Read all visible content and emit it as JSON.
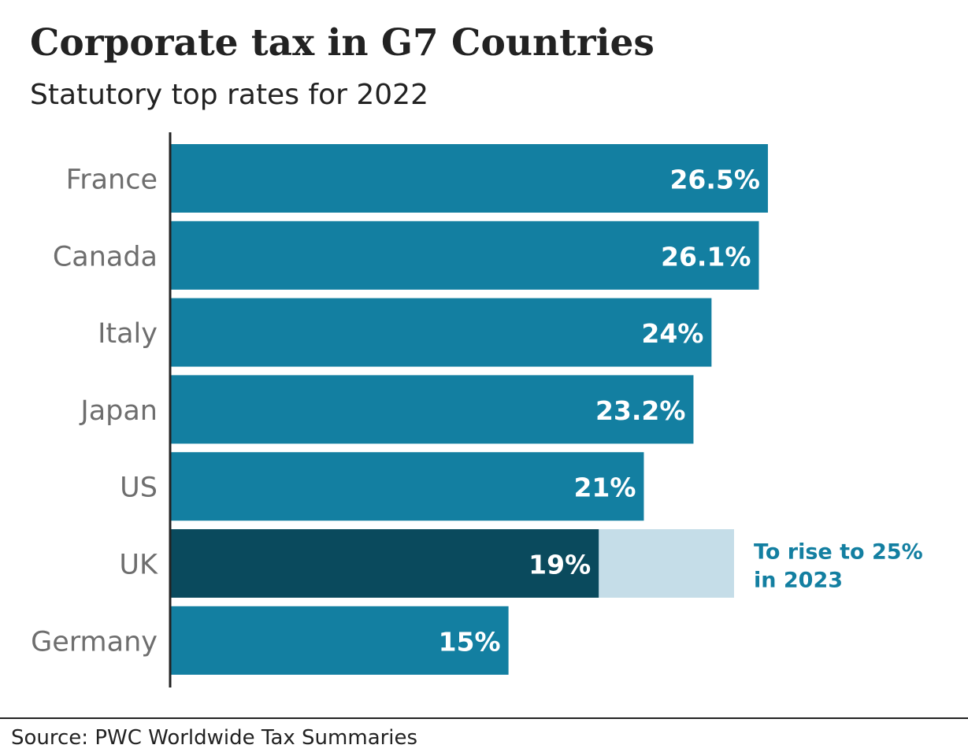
{
  "title": "Corporate tax in G7 Countries",
  "subtitle": "Statutory top rates for 2022",
  "source": "Source: PWC Worldwide Tax Summaries",
  "colors": {
    "bar": "#137fa1",
    "highlight": "#0a4a5d",
    "future": "#c5dde8",
    "annotation": "#137fa1",
    "axis": "#222222",
    "category_label": "#6e6e6e",
    "value_label": "#ffffff"
  },
  "chart_data": {
    "type": "bar",
    "orientation": "horizontal",
    "categories": [
      "France",
      "Canada",
      "Italy",
      "Japan",
      "US",
      "UK",
      "Germany"
    ],
    "values": [
      26.5,
      26.1,
      24,
      23.2,
      21,
      19,
      15
    ],
    "value_labels": [
      "26.5%",
      "26.1%",
      "24%",
      "23.2%",
      "21%",
      "19%",
      "15%"
    ],
    "highlight": "UK",
    "projection": {
      "category": "UK",
      "value": 25,
      "annotation": [
        "To rise to 25%",
        "in 2023"
      ]
    },
    "xlim": [
      0,
      30
    ],
    "grid": false,
    "legend": "none"
  }
}
